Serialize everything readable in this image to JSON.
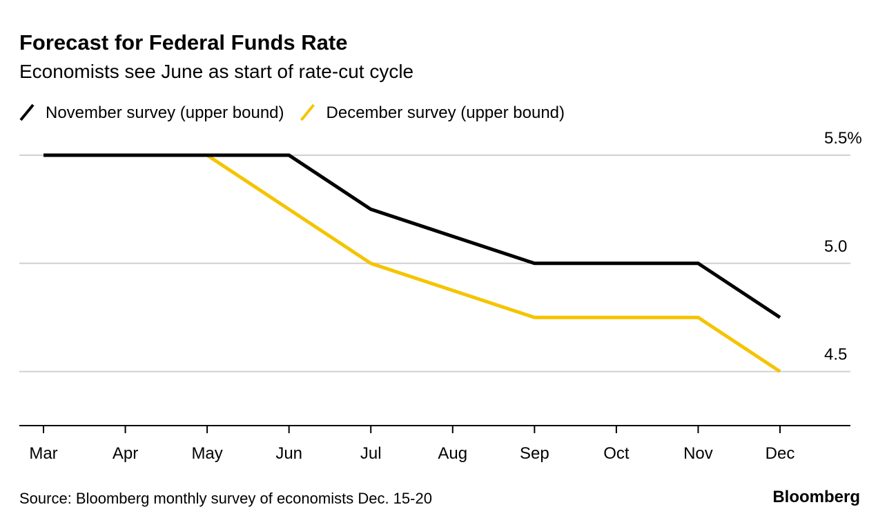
{
  "chart_data": {
    "type": "line",
    "title": "Forecast for Federal Funds Rate",
    "subtitle": "Economists see June as start of rate-cut cycle",
    "categories": [
      "Mar",
      "Apr",
      "May",
      "Jun",
      "Jul",
      "Aug",
      "Sep",
      "Oct",
      "Nov",
      "Dec"
    ],
    "series": [
      {
        "name": "November survey (upper bound)",
        "color": "#000000",
        "values": [
          5.5,
          5.5,
          5.5,
          5.5,
          5.25,
          5.125,
          5.0,
          5.0,
          5.0,
          4.75
        ]
      },
      {
        "name": "December survey (upper bound)",
        "color": "#f5c400",
        "values": [
          5.5,
          5.5,
          5.5,
          5.25,
          5.0,
          4.875,
          4.75,
          4.75,
          4.75,
          4.5
        ]
      }
    ],
    "ylim": [
      4.25,
      5.5
    ],
    "yticks": [
      {
        "value": 5.5,
        "label": "5.5%"
      },
      {
        "value": 5,
        "label": "5.0"
      },
      4.5
    ],
    "grid": true,
    "source": "Source: Bloomberg monthly survey of economists Dec. 15-20",
    "brand": "Bloomberg"
  }
}
